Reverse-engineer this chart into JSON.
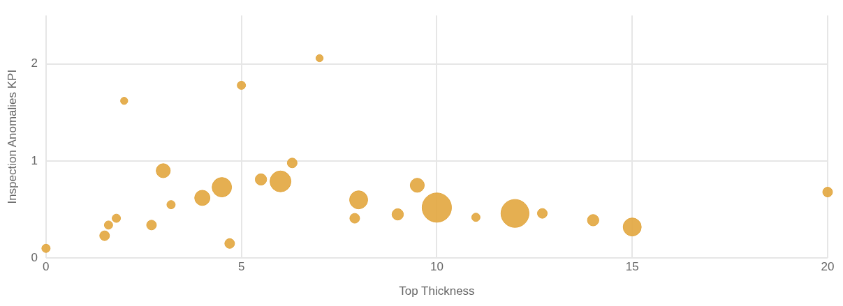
{
  "chart_data": {
    "type": "bubble",
    "xlabel": "Top Thickness",
    "ylabel": "Inspection Anomalies KPI",
    "x": [
      0,
      1.5,
      1.6,
      1.8,
      2.0,
      2.7,
      3.0,
      3.2,
      4.0,
      4.5,
      4.7,
      5.0,
      5.5,
      6.0,
      6.3,
      7.0,
      7.9,
      8.0,
      9.0,
      9.5,
      10.0,
      11.0,
      12.0,
      12.7,
      14.0,
      15.0,
      20.0
    ],
    "values": [
      0.1,
      0.23,
      0.34,
      0.41,
      1.62,
      0.34,
      0.9,
      0.55,
      0.62,
      0.73,
      0.15,
      1.78,
      0.81,
      0.79,
      0.98,
      2.06,
      0.41,
      0.6,
      0.45,
      0.75,
      0.52,
      0.42,
      0.46,
      0.46,
      0.39,
      0.32,
      0.68
    ],
    "sizes": [
      0.08,
      0.11,
      0.08,
      0.08,
      0.06,
      0.11,
      0.23,
      0.08,
      0.27,
      0.44,
      0.11,
      0.08,
      0.15,
      0.51,
      0.11,
      0.06,
      0.11,
      0.38,
      0.15,
      0.23,
      1,
      0.08,
      0.91,
      0.11,
      0.15,
      0.38,
      0.11
    ],
    "color": "#e2a63e",
    "xlim": [
      0,
      20
    ],
    "ylim": [
      0,
      2.5
    ],
    "xticks": [
      0,
      5,
      10,
      15,
      20
    ],
    "yticks": [
      0,
      1,
      2
    ],
    "grid": true
  }
}
